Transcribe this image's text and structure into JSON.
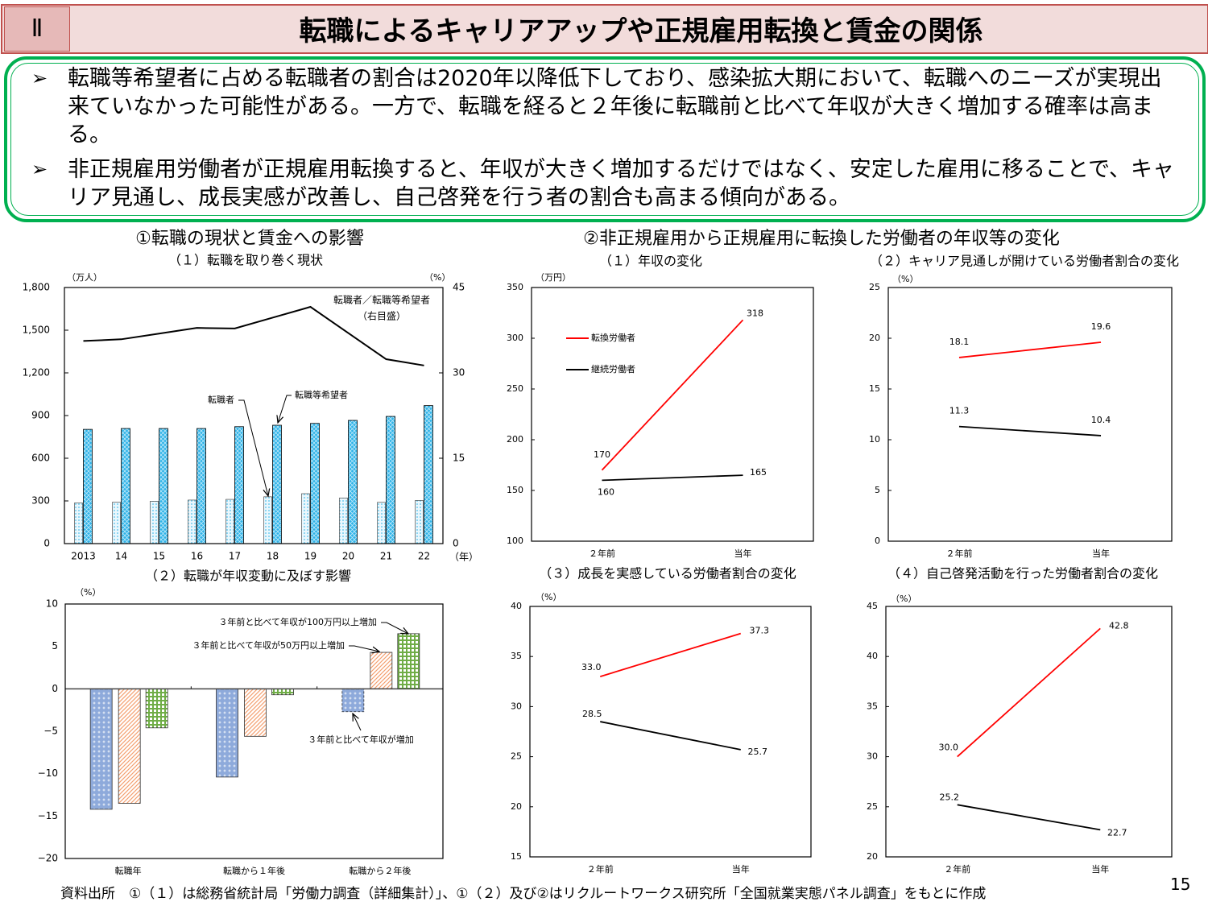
{
  "header": {
    "section_number": "Ⅱ",
    "title": "転職によるキャリアアップや正規雇用転換と賃金の関係"
  },
  "summary": {
    "bullet_icon": "arrowhead-bullet-icon",
    "bullet_mark": "➢",
    "bullets": [
      "転職等希望者に占める転職者の割合は2020年以降低下しており、感染拡大期において、転職へのニーズが実現出来ていなかった可能性がある。一方で、転職を経ると２年後に転職前と比べて年収が大きく増加する確率は高まる。",
      "非正規雇用労働者が正規雇用転換すると、年収が大きく増加するだけではなく、安定した雇用に移ることで、キャリア見通し、成長実感が改善し、自己啓発を行う者の割合も高まる傾向がある。"
    ]
  },
  "sections": {
    "left_title": "①転職の現状と賃金への影響",
    "right_title": "②非正規雇用から正規雇用に転換した労働者の年収等の変化"
  },
  "colors": {
    "red": "#ff0000",
    "black": "#000000",
    "green_border": "#00b050",
    "header_bg": "#f2dcdb",
    "header_border": "#c0504d",
    "cyan_bar": "#2fb3e8",
    "light_bar": "#dff3fb",
    "blue_bar": "#8eaadb",
    "orange_bar": "#f4b183",
    "green_bar": "#70ad47"
  },
  "chart_data": [
    {
      "type": "bar+line",
      "title": "（１）転職を取り巻く現状",
      "categories": [
        "2013",
        "14",
        "15",
        "16",
        "17",
        "18",
        "19",
        "20",
        "21",
        "22"
      ],
      "y_left_unit": "（万人）",
      "y_right_unit": "（%）",
      "x_unit": "（年）",
      "ylim": [
        0,
        1800
      ],
      "yticks": [
        "0",
        "300",
        "600",
        "900",
        "1,200",
        "1,500",
        "1,800"
      ],
      "y2lim": [
        0,
        45
      ],
      "y2ticks": [
        "0",
        "15",
        "30",
        "45"
      ],
      "series": [
        {
          "name": "転職者",
          "type": "bar",
          "axis": "left",
          "values": [
            286,
            291,
            298,
            306,
            311,
            329,
            351,
            321,
            290,
            303
          ]
        },
        {
          "name": "転職等希望者",
          "type": "bar",
          "axis": "left",
          "values": [
            803,
            809,
            809,
            809,
            822,
            832,
            845,
            866,
            894,
            970
          ]
        },
        {
          "name": "転職者／転職等希望者",
          "name_note": "（右目盛）",
          "type": "line",
          "axis": "right",
          "values": [
            35.6,
            35.9,
            36.9,
            37.9,
            37.8,
            39.7,
            41.6,
            37.0,
            32.4,
            31.3
          ]
        }
      ],
      "grid": false
    },
    {
      "type": "bar",
      "title": "（２）転職が年収変動に及ぼす影響",
      "categories": [
        "転職年",
        "転職から１年後",
        "転職から２年後"
      ],
      "ylabel": "（%）",
      "ylim": [
        -20,
        10
      ],
      "yticks": [
        "−20",
        "−15",
        "−10",
        "−5",
        "0",
        "5",
        "10"
      ],
      "series": [
        {
          "name": "３年前と比べて年収が増加",
          "values": [
            -14.2,
            -10.4,
            -2.7
          ]
        },
        {
          "name": "３年前と比べて年収が50万円以上増加",
          "values": [
            -13.5,
            -5.6,
            4.3
          ]
        },
        {
          "name": "３年前と比べて年収が100万円以上増加",
          "values": [
            -4.6,
            -0.7,
            6.5
          ]
        }
      ],
      "grid": false
    },
    {
      "type": "line",
      "title": "（１）年収の変化",
      "ylabel": "（万円）",
      "categories": [
        "２年前",
        "当年"
      ],
      "ylim": [
        100,
        350
      ],
      "ystep": 50,
      "legend": "upper-left",
      "series": [
        {
          "name": "転換労働者",
          "color": "#ff0000",
          "values": [
            170,
            318
          ],
          "labels": [
            "170",
            "318"
          ]
        },
        {
          "name": "継続労働者",
          "color": "#000000",
          "values": [
            160,
            165
          ],
          "labels": [
            "160",
            "165"
          ]
        }
      ]
    },
    {
      "type": "line",
      "title": "（２）キャリア見通しが開けている労働者割合の変化",
      "ylabel": "（%）",
      "categories": [
        "２年前",
        "当年"
      ],
      "ylim": [
        0,
        25
      ],
      "ystep": 5,
      "series": [
        {
          "color": "#ff0000",
          "values": [
            18.1,
            19.6
          ],
          "labels": [
            "18.1",
            "19.6"
          ]
        },
        {
          "color": "#000000",
          "values": [
            11.3,
            10.4
          ],
          "labels": [
            "11.3",
            "10.4"
          ]
        }
      ]
    },
    {
      "type": "line",
      "title": "（３）成長を実感している労働者割合の変化",
      "ylabel": "（%）",
      "categories": [
        "２年前",
        "当年"
      ],
      "ylim": [
        15,
        40
      ],
      "ystep": 5,
      "series": [
        {
          "color": "#ff0000",
          "values": [
            33.0,
            37.3
          ],
          "labels": [
            "33.0",
            "37.3"
          ]
        },
        {
          "color": "#000000",
          "values": [
            28.5,
            25.7
          ],
          "labels": [
            "28.5",
            "25.7"
          ]
        }
      ]
    },
    {
      "type": "line",
      "title": "（４）自己啓発活動を行った労働者割合の変化",
      "ylabel": "（%）",
      "categories": [
        "２年前",
        "当年"
      ],
      "ylim": [
        20,
        45
      ],
      "ystep": 5,
      "series": [
        {
          "color": "#ff0000",
          "values": [
            30.0,
            42.8
          ],
          "labels": [
            "30.0",
            "42.8"
          ]
        },
        {
          "color": "#000000",
          "values": [
            25.2,
            22.7
          ],
          "labels": [
            "25.2",
            "22.7"
          ]
        }
      ]
    }
  ],
  "footer": {
    "source": "資料出所　①（１）は総務省統計局「労働力調査（詳細集計）」、①（２）及び②はリクルートワークス研究所「全国就業実態パネル調査」をもとに作成",
    "page_number": "15"
  }
}
